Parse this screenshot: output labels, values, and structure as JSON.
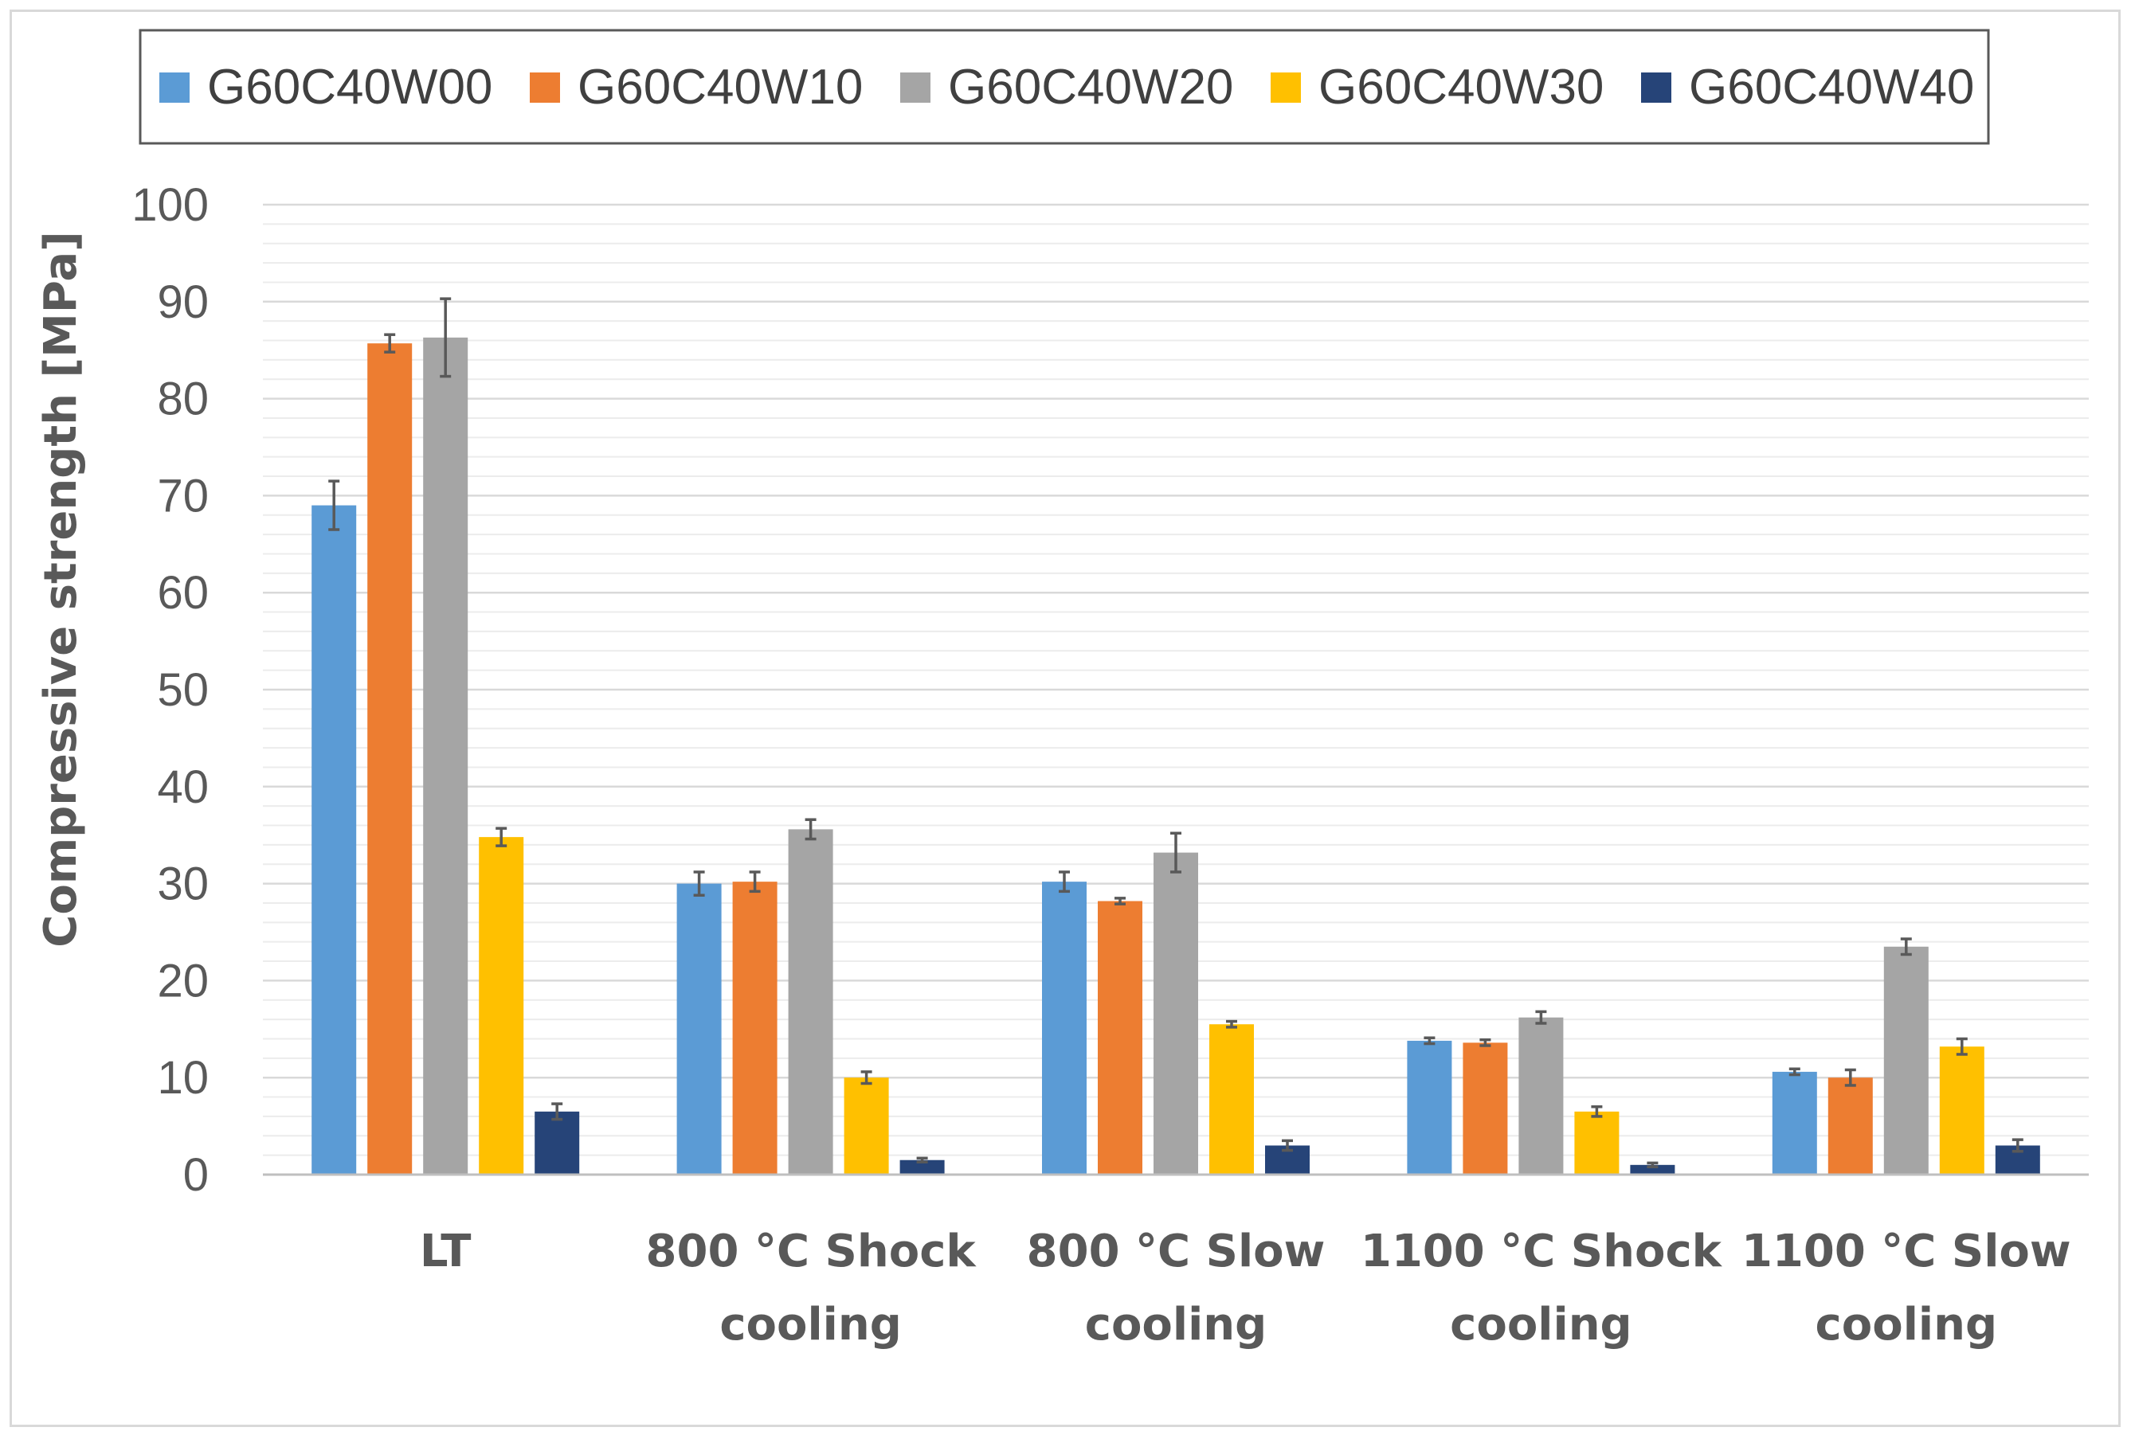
{
  "chart_data": {
    "type": "bar",
    "title": "",
    "xlabel": "",
    "ylabel": "Compressive strength [MPa]",
    "ylim": [
      0,
      100
    ],
    "yticks": [
      0,
      10,
      20,
      30,
      40,
      50,
      60,
      70,
      80,
      90,
      100
    ],
    "grid": true,
    "legend_position": "top",
    "categories": [
      [
        "LT"
      ],
      [
        "800 °C Shock",
        "cooling"
      ],
      [
        "800 °C Slow",
        "cooling"
      ],
      [
        "1100 °C Shock",
        "cooling"
      ],
      [
        "1100 °C Slow",
        "cooling"
      ]
    ],
    "series": [
      {
        "name": "G60C40W00",
        "color": "#5b9bd5",
        "values": [
          69.0,
          30.0,
          30.2,
          13.8,
          10.6
        ],
        "errors": [
          2.5,
          1.2,
          1.0,
          0.3,
          0.3
        ]
      },
      {
        "name": "G60C40W10",
        "color": "#ed7d31",
        "values": [
          85.7,
          30.2,
          28.2,
          13.6,
          10.0
        ],
        "errors": [
          0.9,
          1.0,
          0.3,
          0.3,
          0.8
        ]
      },
      {
        "name": "G60C40W20",
        "color": "#a5a5a5",
        "values": [
          86.3,
          35.6,
          33.2,
          16.2,
          23.5
        ],
        "errors": [
          4.0,
          1.0,
          2.0,
          0.6,
          0.8
        ]
      },
      {
        "name": "G60C40W30",
        "color": "#ffc000",
        "values": [
          34.8,
          10.0,
          15.5,
          6.5,
          13.2
        ],
        "errors": [
          0.9,
          0.6,
          0.3,
          0.5,
          0.8
        ]
      },
      {
        "name": "G60C40W40",
        "color": "#264478",
        "values": [
          6.5,
          1.5,
          3.0,
          1.0,
          3.0
        ],
        "errors": [
          0.8,
          0.2,
          0.5,
          0.2,
          0.6
        ]
      }
    ]
  }
}
